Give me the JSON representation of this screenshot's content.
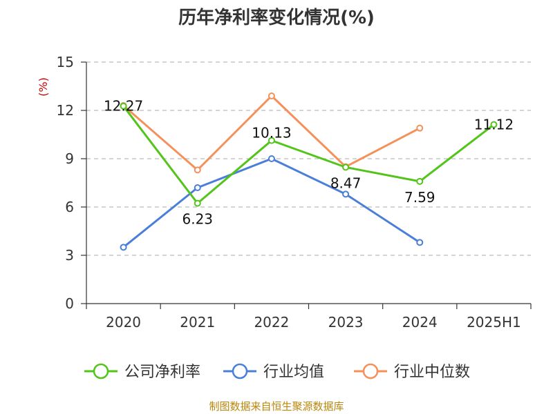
{
  "chart_data": {
    "type": "line",
    "title": "历年净利率变化情况(%)",
    "ylabel": "(%)",
    "xlabel": "",
    "categories": [
      "2020",
      "2021",
      "2022",
      "2023",
      "2024",
      "2025H1"
    ],
    "ylim": [
      0,
      15
    ],
    "yticks": [
      0,
      3,
      6,
      9,
      12,
      15
    ],
    "grid": true,
    "legend_position": "bottom",
    "series": [
      {
        "name": "公司净利率",
        "color": "#52c41a",
        "values": [
          12.27,
          6.23,
          10.13,
          8.47,
          7.59,
          11.12
        ],
        "labels": [
          "12.27",
          "6.23",
          "10.13",
          "8.47",
          "7.59",
          "11.12"
        ]
      },
      {
        "name": "行业均值",
        "color": "#4a7fd9",
        "values": [
          3.5,
          7.2,
          9.0,
          6.8,
          3.8,
          null
        ]
      },
      {
        "name": "行业中位数",
        "color": "#f5905a",
        "values": [
          12.3,
          8.3,
          12.9,
          8.5,
          10.9,
          null
        ]
      }
    ]
  },
  "footer": {
    "source": "制图数据来自恒生聚源数据库"
  }
}
